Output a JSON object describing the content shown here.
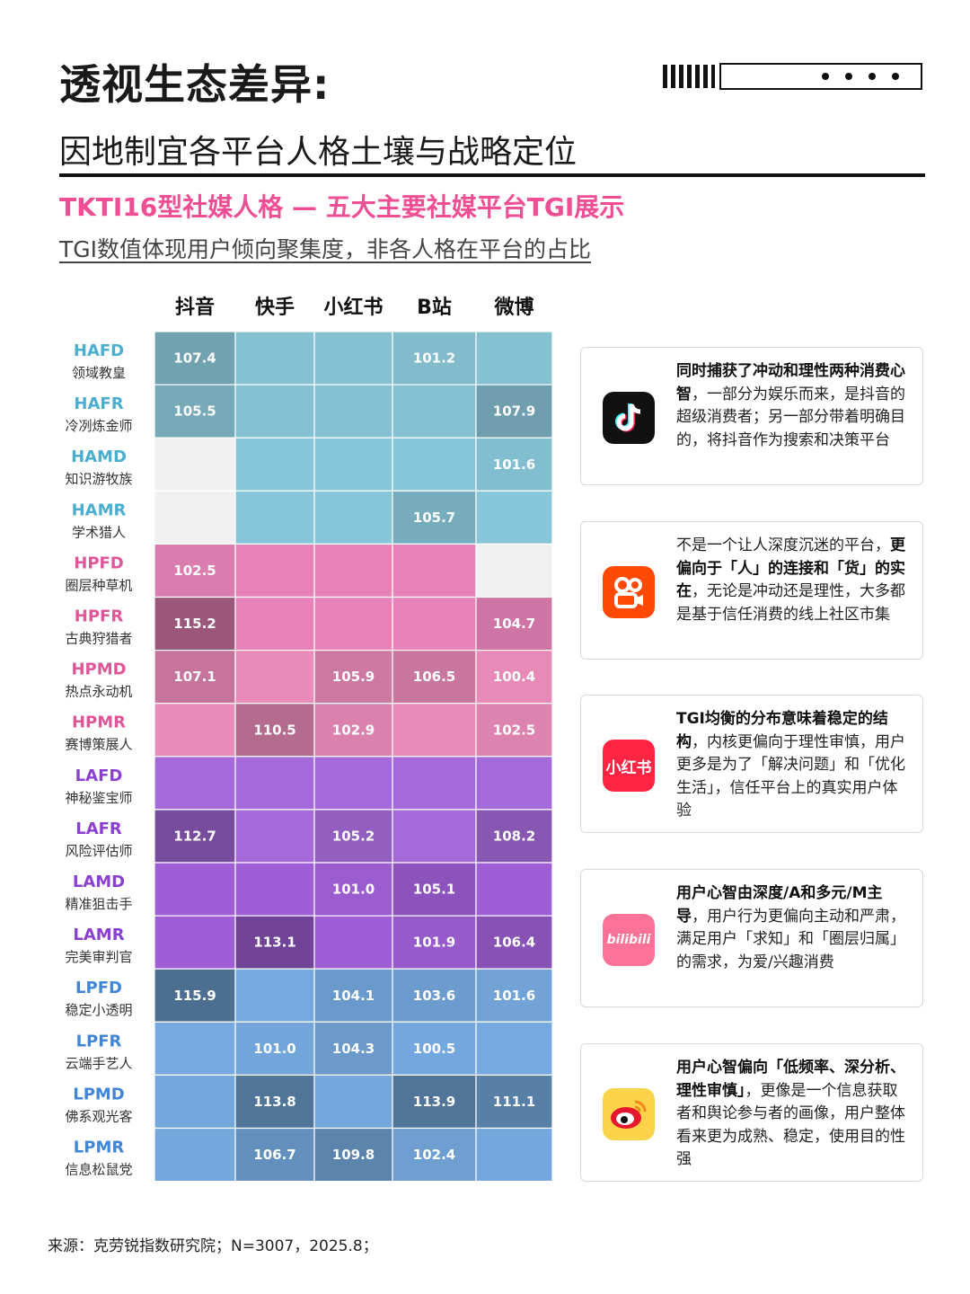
{
  "header": {
    "title": "透视生态差异:",
    "subtitle": "因地制宜各平台人格土壤与战略定位"
  },
  "section": {
    "title": "TKTI16型社媒人格 — 五大主要社媒平台TGI展示",
    "note": "TGI数值体现用户倾向聚集度，非各人格在平台的占比"
  },
  "colors": {
    "accent_pink": "#ee4e93",
    "HAF": "#86c1d2",
    "HAM": "#86c6d8",
    "HPF": "#e783b8",
    "HPM": "#e98bb9",
    "LAF": "#a56ad9",
    "LAM": "#9e5ed4",
    "LPF": "#75a9df",
    "LPM": "#74a8dc",
    "empty": "#f0f0f0"
  },
  "chart_data": {
    "type": "heatmap",
    "title": "TKTI16型社媒人格 — 五大主要社媒平台TGI展示",
    "columns": [
      "抖音",
      "快手",
      "小红书",
      "B站",
      "微博"
    ],
    "rows": [
      {
        "code": "HAFD",
        "name": "领域教皇",
        "values": [
          107.4,
          null,
          null,
          101.2,
          null
        ]
      },
      {
        "code": "HAFR",
        "name": "冷冽炼金师",
        "values": [
          105.5,
          null,
          null,
          null,
          107.9
        ]
      },
      {
        "code": "HAMD",
        "name": "知识游牧族",
        "values": [
          null,
          null,
          null,
          null,
          101.6
        ]
      },
      {
        "code": "HAMR",
        "name": "学术猎人",
        "values": [
          null,
          null,
          null,
          105.7,
          null
        ]
      },
      {
        "code": "HPFD",
        "name": "圈层种草机",
        "values": [
          102.5,
          null,
          null,
          null,
          null
        ]
      },
      {
        "code": "HPFR",
        "name": "古典狩猎者",
        "values": [
          115.2,
          null,
          null,
          null,
          104.7
        ]
      },
      {
        "code": "HPMD",
        "name": "热点永动机",
        "values": [
          107.1,
          null,
          105.9,
          106.5,
          100.4
        ]
      },
      {
        "code": "HPMR",
        "name": "赛博策展人",
        "values": [
          null,
          110.5,
          102.9,
          null,
          102.5
        ]
      },
      {
        "code": "LAFD",
        "name": "神秘鉴宝师",
        "values": [
          null,
          null,
          null,
          null,
          null
        ]
      },
      {
        "code": "LAFR",
        "name": "风险评估师",
        "values": [
          112.7,
          null,
          105.2,
          null,
          108.2
        ]
      },
      {
        "code": "LAMD",
        "name": "精准狙击手",
        "values": [
          null,
          null,
          101.0,
          105.1,
          null
        ]
      },
      {
        "code": "LAMR",
        "name": "完美审判官",
        "values": [
          null,
          113.1,
          null,
          101.9,
          106.4
        ]
      },
      {
        "code": "LPFD",
        "name": "稳定小透明",
        "values": [
          115.9,
          null,
          104.1,
          103.6,
          101.6
        ]
      },
      {
        "code": "LPFR",
        "name": "云端手艺人",
        "values": [
          null,
          101.0,
          104.3,
          100.5,
          null
        ]
      },
      {
        "code": "LPMD",
        "name": "佛系观光客",
        "values": [
          null,
          113.8,
          null,
          113.9,
          111.1
        ]
      },
      {
        "code": "LPMR",
        "name": "信息松鼠党",
        "values": [
          null,
          106.7,
          109.8,
          102.4,
          null
        ]
      }
    ],
    "empty_cells": [
      {
        "row": "HAMD",
        "col": "抖音"
      },
      {
        "row": "HAMR",
        "col": "抖音"
      },
      {
        "row": "HPFD",
        "col": "微博"
      }
    ]
  },
  "cards": [
    {
      "platform": "抖音",
      "icon": "douyin-logo-icon",
      "segments": [
        {
          "t": "同时捕获了冲动和理性两种消费心智",
          "b": true
        },
        {
          "t": "，一部分为娱乐而来，是抖音的超级消费者；另一部分带着明确目的，将抖音作为搜索和决策平台",
          "b": false
        }
      ]
    },
    {
      "platform": "快手",
      "icon": "kuaishou-logo-icon",
      "segments": [
        {
          "t": "不是一个让人深度沉迷的平台，",
          "b": false
        },
        {
          "t": "更偏向于「人」的连接和「货」的实在",
          "b": true
        },
        {
          "t": "，无论是冲动还是理性，大多都是基于信任消费的线上社区市集",
          "b": false
        }
      ]
    },
    {
      "platform": "小红书",
      "icon": "xiaohongshu-logo-icon",
      "logo_text": "小红书",
      "segments": [
        {
          "t": "TGI均衡的分布意味着稳定的结构",
          "b": true
        },
        {
          "t": "，内核更偏向于理性审慎，用户更多是为了「解决问题」和「优化生活」，信任平台上的真实用户体验",
          "b": false
        }
      ]
    },
    {
      "platform": "B站",
      "icon": "bilibili-logo-icon",
      "logo_text": "bilibili",
      "segments": [
        {
          "t": "用户心智由深度/A和多元/M主导",
          "b": true
        },
        {
          "t": "，用户行为更偏向主动和严肃，满足用户「求知」和「圈层归属」的需求，为爱/兴趣消费",
          "b": false
        }
      ]
    },
    {
      "platform": "微博",
      "icon": "weibo-logo-icon",
      "segments": [
        {
          "t": "用户心智偏向「低频率、深分析、理性审慎」",
          "b": true
        },
        {
          "t": "，更像是一个信息获取者和舆论参与者的画像，用户整体看来更为成熟、稳定，使用目的性强",
          "b": false
        }
      ]
    }
  ],
  "footer": {
    "source": "来源：克劳锐指数研究院；N=3007，2025.8；"
  }
}
